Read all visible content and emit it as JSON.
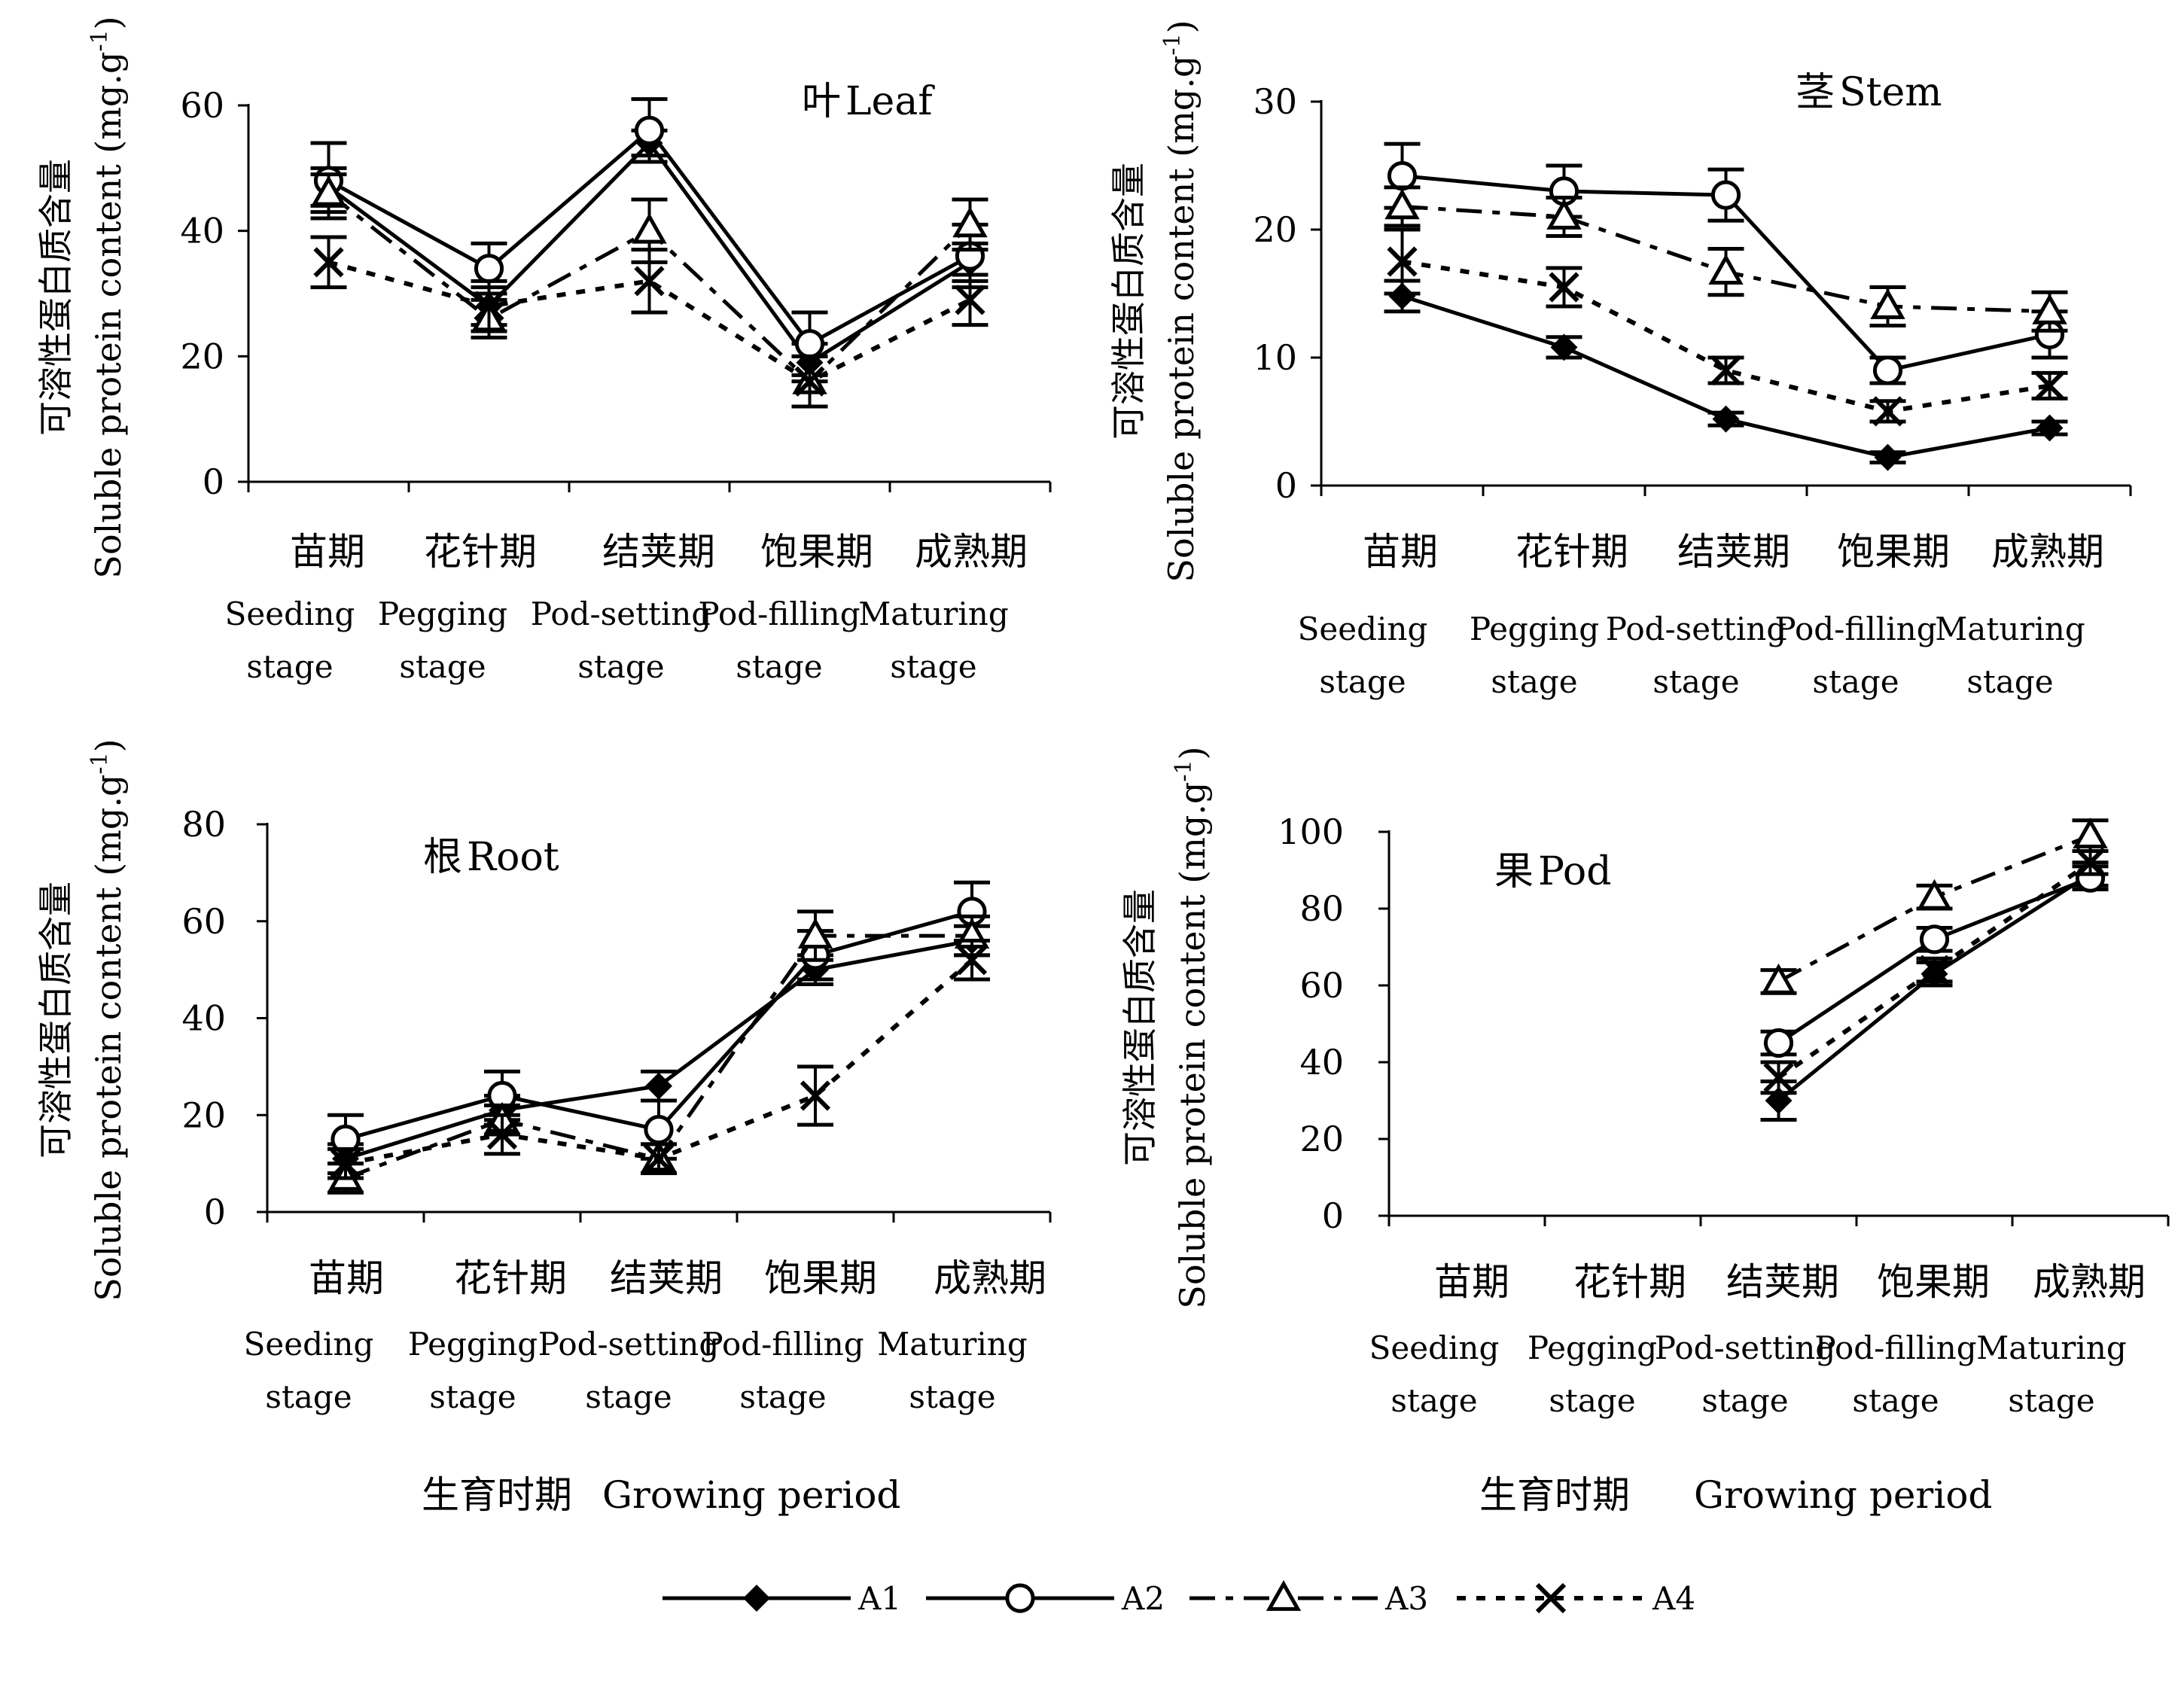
{
  "common": {
    "ylabel_cn": "可溶性蛋白质含量",
    "ylabel_en": "Soluble  protein content (mg.g",
    "ylabel_sup": "-1",
    "ylabel_close": ")",
    "xlabel_cn": "生育时期",
    "xlabel_en": "Growing period",
    "stages_cn": [
      "苗期",
      "花针期",
      "结荚期",
      "饱果期",
      "成熟期"
    ],
    "stages_en1": [
      "Seeding",
      "Pegging",
      "Pod-setting",
      "Pod-filling",
      "Maturing"
    ],
    "stages_en2": [
      "stage",
      "stage",
      "stage",
      "stage",
      "stage"
    ]
  },
  "legend": [
    {
      "name": "A1",
      "marker": "diamond-filled",
      "dash": "solid"
    },
    {
      "name": "A2",
      "marker": "circle-open",
      "dash": "solid"
    },
    {
      "name": "A3",
      "marker": "triangle-open",
      "dash": "long-dash"
    },
    {
      "name": "A4",
      "marker": "x",
      "dash": "short-dash"
    }
  ],
  "chart_data": [
    {
      "id": "leaf",
      "type": "line",
      "title_cn": "叶",
      "title_en": "Leaf",
      "ylim": [
        0,
        60
      ],
      "yticks": [
        0,
        20,
        40,
        60
      ],
      "categories": [
        "苗期",
        "花针期",
        "结荚期",
        "饱果期",
        "成熟期"
      ],
      "series": [
        {
          "name": "A1",
          "values": [
            47,
            28,
            54,
            19,
            35
          ],
          "err": [
            3,
            3,
            2,
            3,
            3
          ]
        },
        {
          "name": "A2",
          "values": [
            48,
            34,
            56,
            22,
            36
          ],
          "err": [
            6,
            4,
            5,
            5,
            5
          ]
        },
        {
          "name": "A3",
          "values": [
            46,
            26,
            40,
            16,
            41
          ],
          "err": [
            3,
            3,
            5,
            4,
            4
          ]
        },
        {
          "name": "A4",
          "values": [
            35,
            28,
            32,
            16,
            29
          ],
          "err": [
            4,
            4,
            5,
            4,
            4
          ]
        }
      ]
    },
    {
      "id": "stem",
      "type": "line",
      "title_cn": "茎",
      "title_en": "Stem",
      "ylim": [
        0,
        30
      ],
      "yticks": [
        0,
        10,
        20,
        30
      ],
      "categories": [
        "苗期",
        "花针期",
        "结荚期",
        "饱果期",
        "成熟期"
      ],
      "series": [
        {
          "name": "A1",
          "values": [
            14.8,
            10.8,
            5.2,
            2.2,
            4.5
          ],
          "err": [
            1.2,
            0.8,
            0.5,
            0.4,
            0.5
          ]
        },
        {
          "name": "A2",
          "values": [
            24.2,
            23.0,
            22.7,
            9.0,
            11.8
          ],
          "err": [
            2.5,
            2.0,
            2.0,
            1.0,
            1.8
          ]
        },
        {
          "name": "A3",
          "values": [
            21.8,
            21.0,
            16.7,
            14.0,
            13.6
          ],
          "err": [
            1.5,
            1.5,
            1.8,
            1.5,
            1.5
          ]
        },
        {
          "name": "A4",
          "values": [
            17.5,
            15.5,
            9.0,
            5.8,
            7.8
          ],
          "err": [
            2.5,
            1.5,
            1.0,
            0.8,
            1.0
          ]
        }
      ]
    },
    {
      "id": "root",
      "type": "line",
      "title_cn": "根",
      "title_en": "Root",
      "ylim": [
        0,
        80
      ],
      "yticks": [
        0,
        20,
        40,
        60,
        80
      ],
      "categories": [
        "苗期",
        "花针期",
        "结荚期",
        "饱果期",
        "成熟期"
      ],
      "series": [
        {
          "name": "A1",
          "values": [
            11,
            21,
            26,
            50,
            56
          ],
          "err": [
            3,
            3,
            3,
            3,
            3
          ]
        },
        {
          "name": "A2",
          "values": [
            15,
            24,
            17,
            53,
            62
          ],
          "err": [
            5,
            5,
            6,
            5,
            6
          ]
        },
        {
          "name": "A3",
          "values": [
            7,
            19,
            11,
            57,
            57
          ],
          "err": [
            3,
            3,
            3,
            5,
            4
          ]
        },
        {
          "name": "A4",
          "values": [
            10,
            16,
            11,
            24,
            52
          ],
          "err": [
            3,
            4,
            3,
            6,
            4
          ]
        }
      ]
    },
    {
      "id": "pod",
      "type": "line",
      "title_cn": "果",
      "title_en": "Pod",
      "ylim": [
        0,
        100
      ],
      "yticks": [
        0,
        20,
        40,
        60,
        80,
        100
      ],
      "categories": [
        "苗期",
        "花针期",
        "结荚期",
        "饱果期",
        "成熟期"
      ],
      "series": [
        {
          "name": "A1",
          "values": [
            null,
            null,
            30,
            63,
            89
          ],
          "err": [
            0,
            0,
            5,
            3,
            3
          ]
        },
        {
          "name": "A2",
          "values": [
            null,
            null,
            45,
            72,
            88
          ],
          "err": [
            0,
            0,
            3,
            3,
            3
          ]
        },
        {
          "name": "A3",
          "values": [
            null,
            null,
            61,
            83,
            99
          ],
          "err": [
            0,
            0,
            3,
            3,
            4
          ]
        },
        {
          "name": "A4",
          "values": [
            null,
            null,
            36,
            64,
            92
          ],
          "err": [
            0,
            0,
            4,
            3,
            3
          ]
        }
      ]
    }
  ]
}
